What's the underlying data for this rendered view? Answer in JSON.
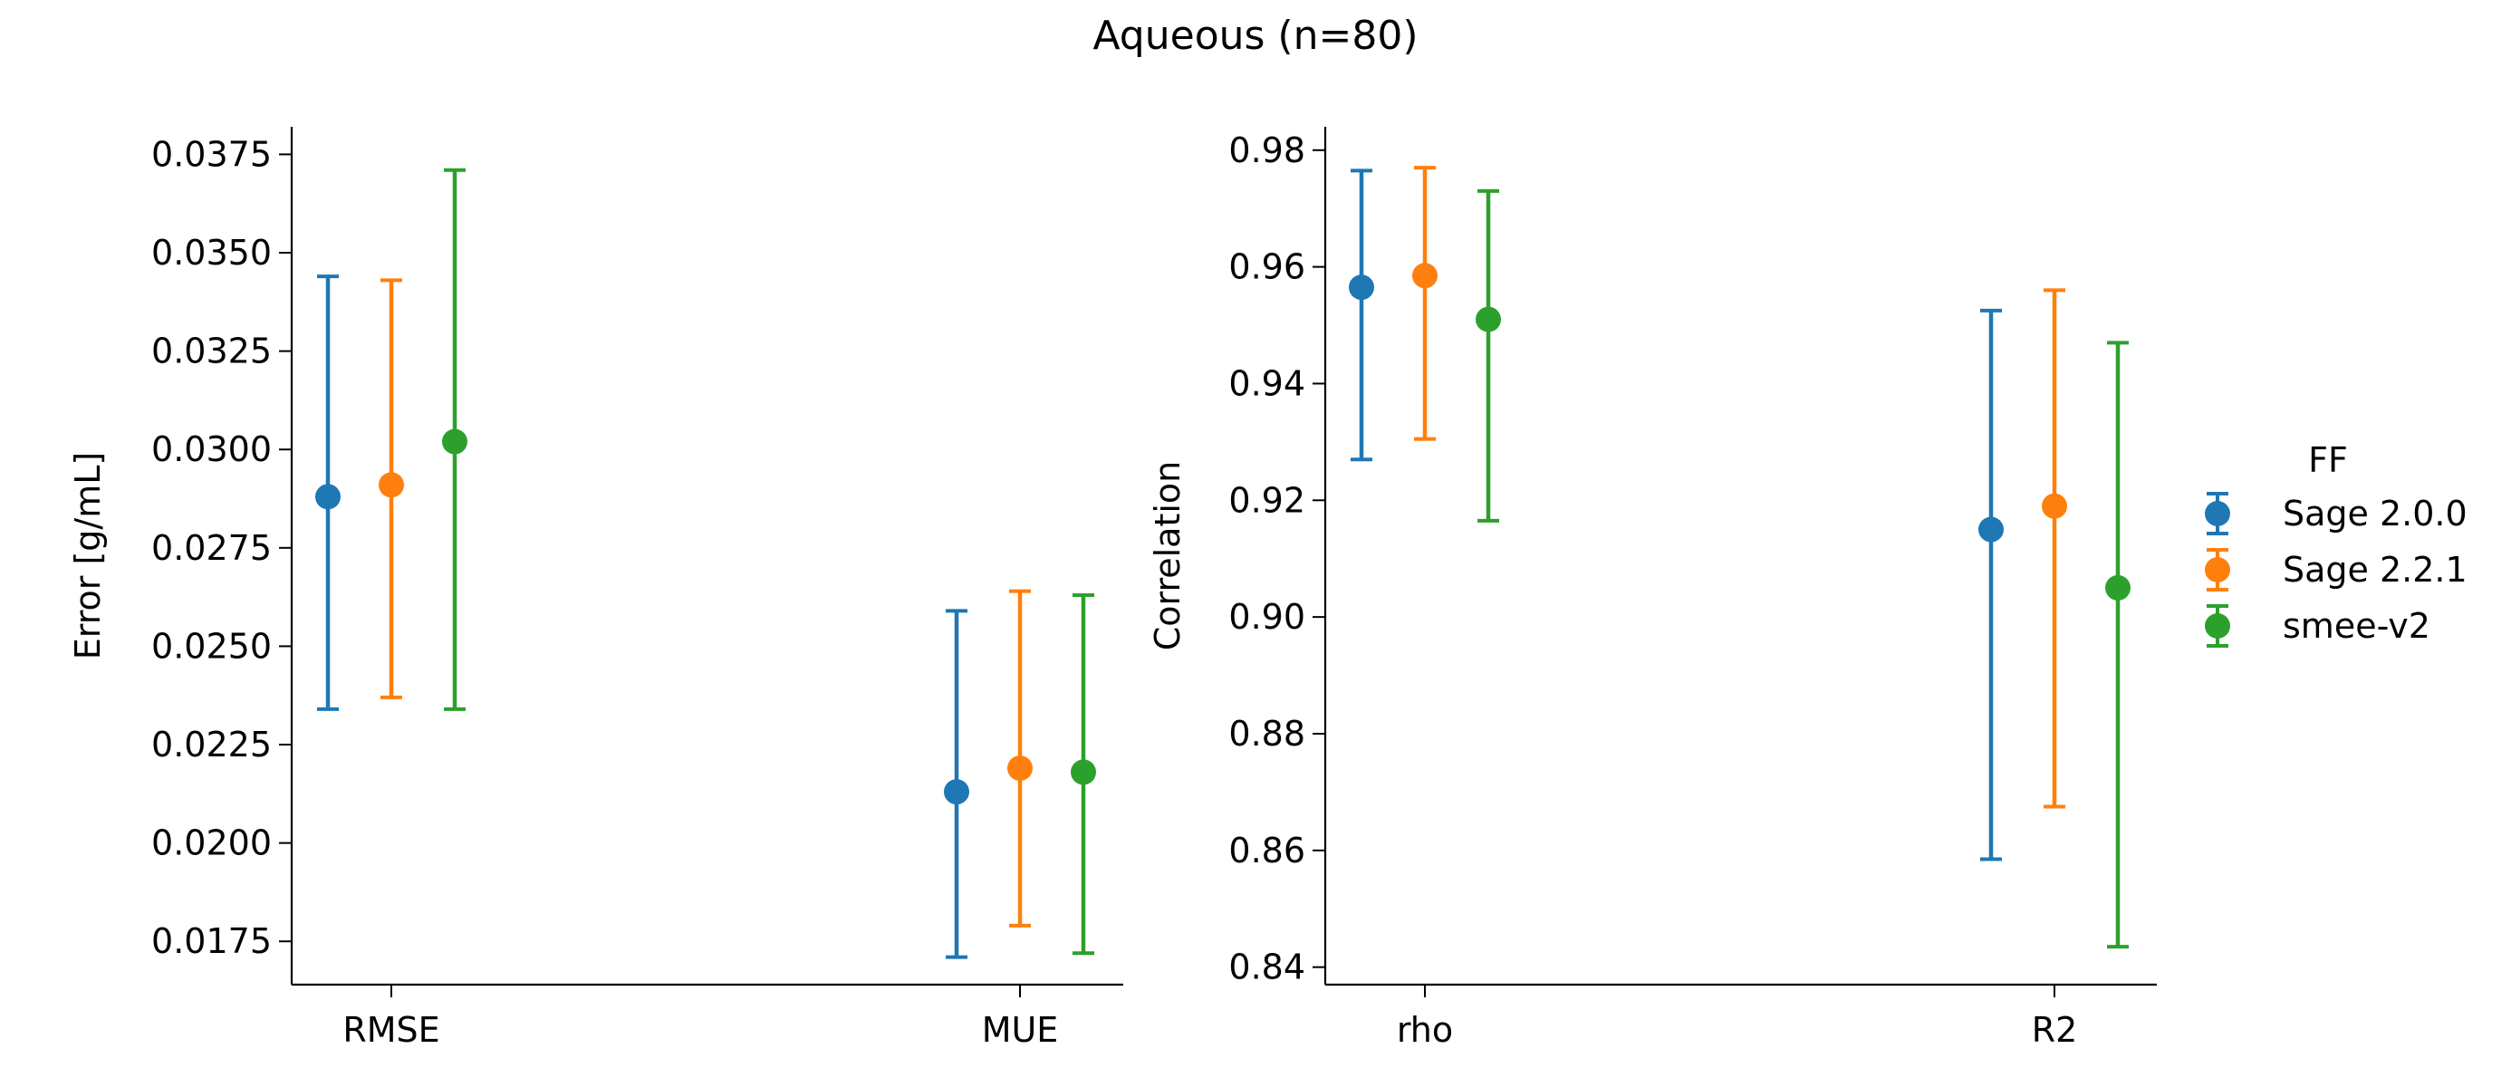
{
  "figure": {
    "title": "Aqueous (n=80)"
  },
  "colors": {
    "Sage 2.0.0": "#1f77b4",
    "Sage 2.2.1": "#ff7f0e",
    "smee-v2": "#2ca02c"
  },
  "legend": {
    "title": "FF",
    "entries": [
      "Sage 2.0.0",
      "Sage 2.2.1",
      "smee-v2"
    ],
    "placement": "right"
  },
  "chart_data": [
    {
      "type": "scatter",
      "title": "",
      "xlabel": "",
      "ylabel": "Error [g/mL]",
      "categories": [
        "RMSE",
        "MUE"
      ],
      "ylim": [
        0.0164,
        0.0382
      ],
      "yticks": [
        "0.0175",
        "0.0200",
        "0.0225",
        "0.0250",
        "0.0275",
        "0.0300",
        "0.0325",
        "0.0350",
        "0.0375"
      ],
      "grid": false,
      "series": [
        {
          "name": "Sage 2.0.0",
          "values": [
            0.0288,
            0.0213
          ],
          "lower": [
            0.0234,
            0.0171
          ],
          "upper": [
            0.0344,
            0.0259
          ]
        },
        {
          "name": "Sage 2.2.1",
          "values": [
            0.0291,
            0.0219
          ],
          "lower": [
            0.0237,
            0.0179
          ],
          "upper": [
            0.0343,
            0.0264
          ]
        },
        {
          "name": "smee-v2",
          "values": [
            0.0302,
            0.0218
          ],
          "lower": [
            0.0234,
            0.0172
          ],
          "upper": [
            0.0371,
            0.0263
          ]
        }
      ]
    },
    {
      "type": "scatter",
      "title": "",
      "xlabel": "",
      "ylabel": "Correlation",
      "categories": [
        "rho",
        "R2"
      ],
      "ylim": [
        0.837,
        0.984
      ],
      "yticks": [
        "0.84",
        "0.86",
        "0.88",
        "0.90",
        "0.92",
        "0.94",
        "0.96",
        "0.98"
      ],
      "grid": false,
      "series": [
        {
          "name": "Sage 2.0.0",
          "values": [
            0.9565,
            0.915
          ],
          "lower": [
            0.927,
            0.8585
          ],
          "upper": [
            0.9765,
            0.9525
          ]
        },
        {
          "name": "Sage 2.2.1",
          "values": [
            0.9585,
            0.919
          ],
          "lower": [
            0.9305,
            0.8675
          ],
          "upper": [
            0.977,
            0.956
          ]
        },
        {
          "name": "smee-v2",
          "values": [
            0.951,
            0.905
          ],
          "lower": [
            0.9165,
            0.8435
          ],
          "upper": [
            0.973,
            0.947
          ]
        }
      ]
    }
  ]
}
